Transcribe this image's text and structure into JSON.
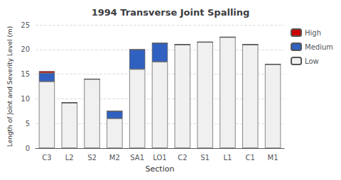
{
  "chart_data": {
    "type": "bar",
    "title": "1994 Transverse Joint Spalling",
    "xlabel": "Section",
    "ylabel": "Length of Joint and Severity Level (m)",
    "categories": [
      "C3",
      "L2",
      "S2",
      "M2",
      "SA1",
      "LO1",
      "C2",
      "S1",
      "L1",
      "C1",
      "M1"
    ],
    "series": [
      {
        "name": "Low",
        "color": "#f0f0f0",
        "values": [
          13.5,
          9.2,
          14.0,
          6.0,
          16.0,
          17.5,
          21.0,
          21.5,
          22.5,
          21.0,
          17.0
        ]
      },
      {
        "name": "Medium",
        "color": "#3060c0",
        "values": [
          1.7,
          0,
          0,
          1.5,
          4.0,
          3.8,
          0,
          0,
          0,
          0,
          0
        ]
      },
      {
        "name": "High",
        "color": "#cc0000",
        "values": [
          0.4,
          0,
          0,
          0,
          0,
          0,
          0,
          0,
          0,
          0,
          0
        ]
      }
    ],
    "stacked": true,
    "ylim": [
      0,
      25
    ],
    "yticks": [
      0,
      5,
      10,
      15,
      20,
      25
    ],
    "grid": true,
    "legend": "upper right"
  }
}
